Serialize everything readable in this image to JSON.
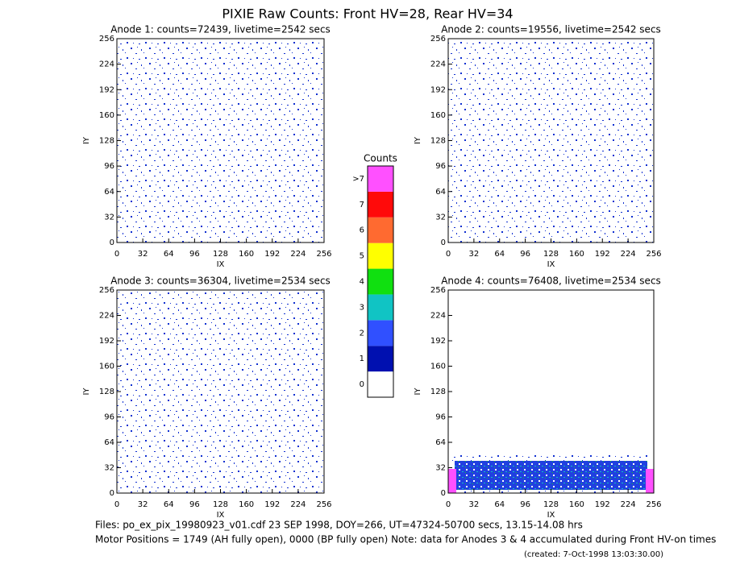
{
  "title": "PIXIE Raw Counts:  Front HV=28, Rear HV=34",
  "chart_data": [
    {
      "type": "heatmap",
      "title": "Anode 1: counts=72439, livetime=2542 secs",
      "x_label": "IX",
      "y_label": "IY",
      "xlim": [
        0,
        256
      ],
      "ylim": [
        0,
        256
      ],
      "xticks": [
        0,
        32,
        64,
        96,
        128,
        160,
        192,
        224,
        256
      ],
      "yticks": [
        0,
        32,
        64,
        96,
        128,
        160,
        192,
        224,
        256
      ]
    },
    {
      "type": "heatmap",
      "title": "Anode 2: counts=19556, livetime=2542 secs",
      "x_label": "IX",
      "y_label": "IY",
      "xlim": [
        0,
        256
      ],
      "ylim": [
        0,
        256
      ],
      "xticks": [
        0,
        32,
        64,
        96,
        128,
        160,
        192,
        224,
        256
      ],
      "yticks": [
        0,
        32,
        64,
        96,
        128,
        160,
        192,
        224,
        256
      ]
    },
    {
      "type": "heatmap",
      "title": "Anode 3: counts=36304, livetime=2534 secs",
      "x_label": "IX",
      "y_label": "IY",
      "xlim": [
        0,
        256
      ],
      "ylim": [
        0,
        256
      ],
      "xticks": [
        0,
        32,
        64,
        96,
        128,
        160,
        192,
        224,
        256
      ],
      "yticks": [
        0,
        32,
        64,
        96,
        128,
        160,
        192,
        224,
        256
      ]
    },
    {
      "type": "heatmap",
      "title": "Anode 4: counts=76408, livetime=2534 secs",
      "x_label": "IX",
      "y_label": "IY",
      "xlim": [
        0,
        256
      ],
      "ylim": [
        0,
        256
      ],
      "xticks": [
        0,
        32,
        64,
        96,
        128,
        160,
        192,
        224,
        256
      ],
      "yticks": [
        0,
        32,
        64,
        96,
        128,
        160,
        192,
        224,
        256
      ]
    }
  ],
  "colorbar": {
    "title": "Counts",
    "levels": [
      {
        "label": "0",
        "color": "#ffffff"
      },
      {
        "label": "1",
        "color": "#0010b0"
      },
      {
        "label": "2",
        "color": "#3050ff"
      },
      {
        "label": "3",
        "color": "#10c4c4"
      },
      {
        "label": "4",
        "color": "#10e010"
      },
      {
        "label": "5",
        "color": "#ffff00"
      },
      {
        "label": "6",
        "color": "#ff6a30"
      },
      {
        "label": "7",
        "color": "#ff0a0a"
      },
      {
        "label": ">7",
        "color": "#ff50ff"
      }
    ]
  },
  "footer": {
    "files": "Files: po_ex_pix_19980923_v01.cdf    23 SEP 1998, DOY=266, UT=47324-50700 secs, 13.15-14.08 hrs",
    "motor": "Motor Positions = 1749 (AH fully open), 0000 (BP fully open)    Note: data for Anodes 3 & 4 accumulated during Front HV-on times",
    "created": "(created:  7-Oct-1998 13:03:30.00)"
  }
}
